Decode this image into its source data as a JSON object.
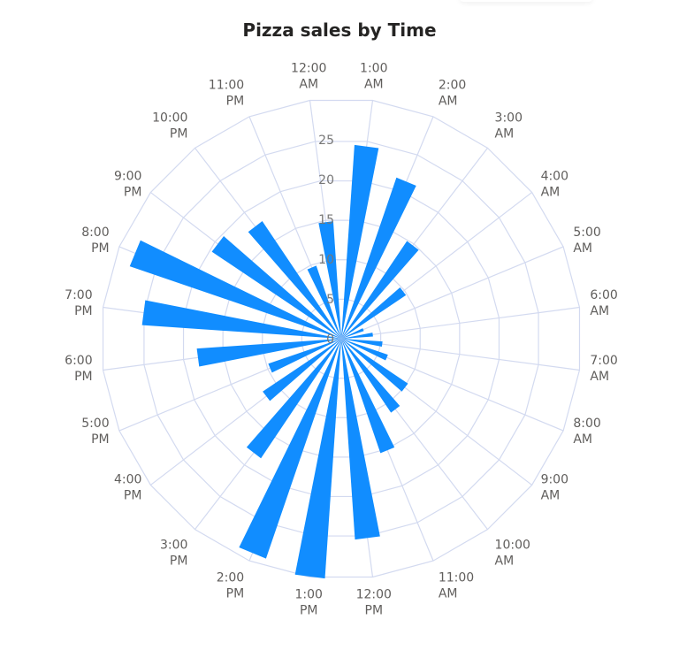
{
  "title": "Pizza sales by Time",
  "colors": {
    "bar": "#118DFF",
    "grid": "#D3DAF0",
    "label": "#605E5C",
    "title": "#252423"
  },
  "chart_data": {
    "type": "bar",
    "subtype": "polar-radar-bar",
    "title": "Pizza sales by Time",
    "categories": [
      "12:00 AM",
      "1:00 AM",
      "2:00 AM",
      "3:00 AM",
      "4:00 AM",
      "5:00 AM",
      "6:00 AM",
      "7:00 AM",
      "8:00 AM",
      "9:00 AM",
      "10:00 AM",
      "11:00 AM",
      "12:00 PM",
      "1:00 PM",
      "2:00 PM",
      "3:00 PM",
      "4:00 PM",
      "5:00 PM",
      "6:00 PM",
      "7:00 PM",
      "8:00 PM",
      "9:00 PM",
      "10:00 PM",
      "11:00 PM"
    ],
    "values": [
      14.8,
      24.4,
      21.4,
      14.8,
      9.8,
      3.0,
      4.0,
      5.2,
      6.2,
      10.1,
      11.2,
      15.2,
      25.3,
      30.2,
      29.2,
      18.1,
      11.9,
      9.7,
      18.2,
      25.1,
      28.1,
      19.6,
      17.8,
      9.7
    ],
    "radial_ticks": [
      "0",
      "5",
      "10",
      "15",
      "20",
      "25"
    ],
    "radial_tick_values": [
      0,
      5,
      10,
      15,
      20,
      25
    ],
    "radial_range": [
      0,
      30.2
    ],
    "grid": true,
    "legend": "none",
    "xlabel": "",
    "ylabel": ""
  }
}
